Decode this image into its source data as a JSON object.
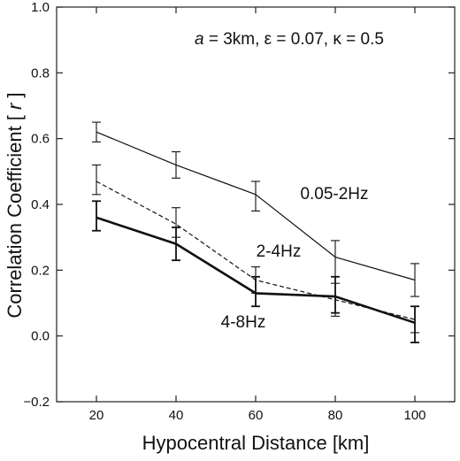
{
  "chart_data": {
    "type": "line",
    "xlabel": "Hypocentral Distance [km]",
    "ylabel_prefix": "Correlation Coefficient [ ",
    "ylabel_var": "r",
    "ylabel_suffix": " ]",
    "xlim": [
      10,
      110
    ],
    "ylim": [
      -0.2,
      1.0
    ],
    "xticks": [
      20,
      40,
      60,
      80,
      100
    ],
    "xtick_labels": [
      "20",
      "40",
      "60",
      "80",
      "100"
    ],
    "yticks": [
      -0.2,
      0.0,
      0.2,
      0.4,
      0.6,
      0.8,
      1.0
    ],
    "ytick_labels": [
      "−0.2",
      "0.0",
      "0.2",
      "0.4",
      "0.6",
      "0.8",
      "1.0"
    ],
    "annotation": {
      "a_var": "a",
      "a_rest": " = 3km, ε = 0.07, κ = 0.5"
    },
    "x": [
      20,
      40,
      60,
      80,
      100
    ],
    "series": [
      {
        "name": "0.05-2Hz",
        "style": "thin",
        "values": [
          0.62,
          0.52,
          0.43,
          0.24,
          0.17
        ],
        "err_low": [
          0.59,
          0.48,
          0.38,
          0.18,
          0.12
        ],
        "err_high": [
          0.65,
          0.56,
          0.47,
          0.29,
          0.22
        ]
      },
      {
        "name": "2-4Hz",
        "style": "dashed",
        "values": [
          0.47,
          0.34,
          0.17,
          0.11,
          0.05
        ],
        "err_low": [
          0.43,
          0.3,
          0.13,
          0.06,
          0.01
        ],
        "err_high": [
          0.52,
          0.39,
          0.21,
          0.16,
          0.09
        ]
      },
      {
        "name": "4-8Hz",
        "style": "thick",
        "values": [
          0.36,
          0.28,
          0.13,
          0.12,
          0.04
        ],
        "err_low": [
          0.32,
          0.23,
          0.09,
          0.07,
          -0.02
        ],
        "err_high": [
          0.41,
          0.33,
          0.18,
          0.18,
          0.09
        ]
      }
    ]
  }
}
